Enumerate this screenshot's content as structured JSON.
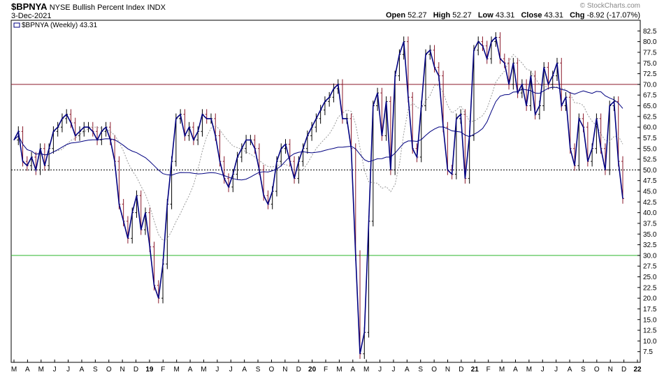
{
  "header": {
    "symbol": "$BPNYA",
    "description": "NYSE Bullish Percent Index",
    "exchange": "INDX",
    "date": "3-Dec-2021",
    "brand": "© StockCharts.com",
    "open_label": "Open",
    "open": "52.27",
    "high_label": "High",
    "high": "52.27",
    "low_label": "Low",
    "low": "43.31",
    "close_label": "Close",
    "close": "43.31",
    "chg_label": "Chg",
    "chg": "-8.92 (-17.07%)"
  },
  "chart_data": {
    "type": "line",
    "legend": {
      "text": "$BPNYA (Weekly) 43.31",
      "position": "top-left"
    },
    "ylim": [
      5,
      85
    ],
    "yticks": [
      7.5,
      10.0,
      12.5,
      15.0,
      17.5,
      20.0,
      22.5,
      25.0,
      27.5,
      30.0,
      32.5,
      35.0,
      37.5,
      40.0,
      42.5,
      45.0,
      47.5,
      50.0,
      52.5,
      55.0,
      57.5,
      60.0,
      62.5,
      65.0,
      67.5,
      70.0,
      72.5,
      75.0,
      77.5,
      80.0,
      82.5
    ],
    "x_ticks": [
      "M",
      "A",
      "M",
      "J",
      "J",
      "A",
      "S",
      "O",
      "N",
      "D",
      "19",
      "F",
      "M",
      "A",
      "M",
      "J",
      "J",
      "A",
      "S",
      "O",
      "N",
      "D",
      "20",
      "F",
      "M",
      "A",
      "M",
      "J",
      "J",
      "A",
      "S",
      "O",
      "N",
      "D",
      "21",
      "F",
      "M",
      "A",
      "M",
      "J",
      "J",
      "A",
      "S",
      "O",
      "N",
      "D",
      "22"
    ],
    "reference_lines": [
      {
        "value": 70,
        "color": "#8b1a2b",
        "style": "solid"
      },
      {
        "value": 50,
        "color": "#000000",
        "style": "dotted"
      },
      {
        "value": 30,
        "color": "#2db82d",
        "style": "solid"
      }
    ],
    "series": [
      {
        "type": "line",
        "color": "#000080",
        "values": [
          57,
          59,
          52,
          51,
          53,
          50,
          55,
          51,
          55,
          59,
          60,
          62,
          63,
          61,
          58,
          59,
          60,
          60,
          59,
          57,
          59,
          60,
          57,
          52,
          42,
          38,
          34,
          40,
          44,
          36,
          40,
          32,
          23,
          20,
          28,
          42,
          52,
          62,
          63,
          58,
          60,
          57,
          59,
          63,
          62,
          62,
          58,
          52,
          48,
          46,
          49,
          53,
          55,
          57,
          57,
          55,
          50,
          44,
          42,
          45,
          52,
          55,
          56,
          52,
          48,
          52,
          55,
          58,
          60,
          62,
          64,
          66,
          67,
          69,
          70,
          62,
          62,
          55,
          30,
          7,
          12,
          38,
          65,
          68,
          58,
          66,
          50,
          72,
          77,
          80,
          67,
          55,
          53,
          65,
          77,
          78,
          74,
          72,
          60,
          50,
          49,
          62,
          63,
          48,
          58,
          78,
          80,
          79,
          76,
          80,
          81,
          76,
          75,
          70,
          75,
          68,
          70,
          65,
          72,
          63,
          65,
          74,
          70,
          72,
          75,
          65,
          67,
          55,
          51,
          62,
          60,
          52,
          55,
          62,
          55,
          50,
          65,
          66,
          52,
          43.31
        ]
      },
      {
        "type": "ohlc",
        "color": "#8b1a2b",
        "values": []
      },
      {
        "type": "line",
        "name": "short-ma",
        "color": "#999999",
        "style": "dotted",
        "values": []
      },
      {
        "type": "line",
        "name": "long-ma",
        "color": "#000080",
        "values": []
      }
    ]
  }
}
